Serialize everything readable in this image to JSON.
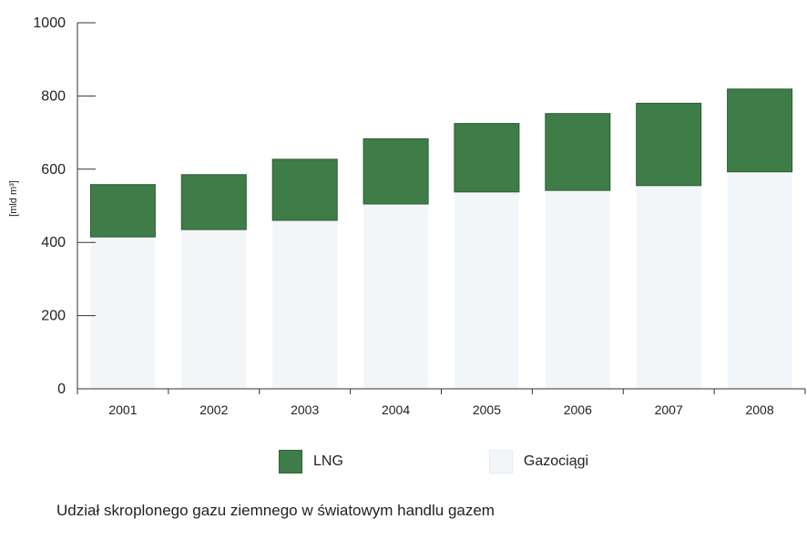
{
  "chart_data": {
    "type": "bar",
    "stacked": true,
    "categories": [
      "2001",
      "2002",
      "2003",
      "2004",
      "2005",
      "2006",
      "2007",
      "2008"
    ],
    "series": [
      {
        "name": "Gazociągi",
        "values": [
          415,
          435,
          460,
          505,
          538,
          542,
          555,
          593
        ],
        "color": "#f3f6f9"
      },
      {
        "name": "LNG",
        "values": [
          143,
          150,
          167,
          178,
          187,
          210,
          225,
          226
        ],
        "color": "#3f7d48"
      }
    ],
    "ylabel": "[mld m³]",
    "ylim": [
      0,
      1000
    ],
    "yticks": [
      "0",
      "200",
      "400",
      "600",
      "800",
      "1000"
    ],
    "grid": false,
    "legend_position": "bottom"
  },
  "legend": {
    "lng_label": "LNG",
    "pipelines_label": "Gazociągi"
  },
  "caption": "Udział skroplonego gazu ziemnego w światowym handlu gazem"
}
